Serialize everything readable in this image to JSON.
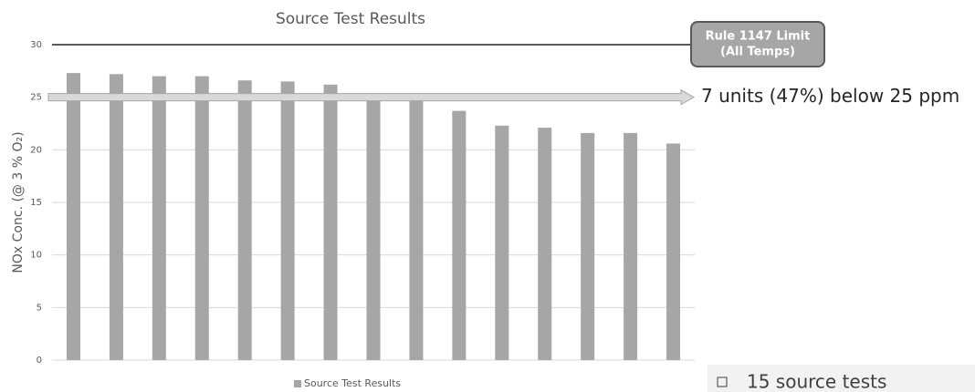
{
  "chart_data": {
    "type": "bar",
    "title": "Source Test Results",
    "y_label": "NOx Conc. (@ 3 % O₂)",
    "categories": [
      null,
      null,
      null,
      null,
      null,
      null,
      null,
      null,
      null,
      null,
      null,
      null,
      null,
      null,
      null
    ],
    "series": [
      {
        "name": "Source Test Results",
        "color": "#a6a6a6",
        "values": [
          27.3,
          27.2,
          27.0,
          27.0,
          26.6,
          26.5,
          26.2,
          25.2,
          24.9,
          23.7,
          22.3,
          22.1,
          21.6,
          21.6,
          20.6
        ]
      }
    ],
    "ylim": [
      0,
      30
    ],
    "yticks": [
      0,
      5,
      10,
      15,
      20,
      25,
      30
    ],
    "grid": true,
    "legend": "bottom",
    "limit_line": {
      "value": 30,
      "label": [
        "Rule 1147 Limit",
        "(All Temps)"
      ],
      "color": "#595959"
    },
    "arrow_line": {
      "value": 25,
      "label": "7 units (47%) below 25 ppm",
      "color": "#d9d9d9"
    },
    "notes": [
      "15 source tests"
    ]
  }
}
